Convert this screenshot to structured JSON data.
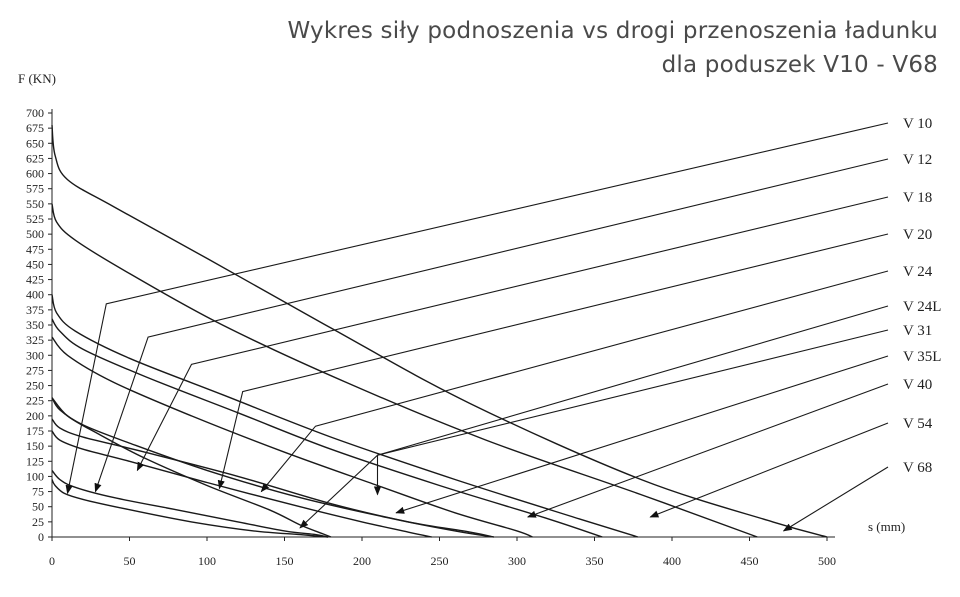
{
  "chart_data": {
    "type": "line",
    "title": "Wykres siły podnoszenia vs drogi przenoszenia ładunku",
    "subtitle": "dla poduszek V10 - V68",
    "ylabel": "F (KN)",
    "xlabel": "s (mm)",
    "xlim": [
      0,
      500
    ],
    "ylim": [
      0,
      700
    ],
    "x_ticks": [
      0,
      50,
      100,
      150,
      200,
      250,
      300,
      350,
      400,
      450,
      500
    ],
    "y_ticks": [
      0,
      25,
      50,
      75,
      100,
      125,
      150,
      175,
      200,
      225,
      250,
      275,
      300,
      325,
      350,
      375,
      400,
      425,
      450,
      475,
      500,
      525,
      550,
      575,
      600,
      625,
      650,
      675,
      700
    ],
    "grid": false,
    "series": [
      {
        "name": "V 10",
        "x": [
          0,
          2,
          8,
          20,
          50,
          90,
          130,
          160,
          178
        ],
        "y": [
          95,
          85,
          72,
          62,
          45,
          25,
          10,
          4,
          0
        ],
        "label_anchor": [
          35,
          385
        ],
        "arrow_tip": [
          10,
          72
        ]
      },
      {
        "name": "V 12",
        "x": [
          0,
          5,
          15,
          40,
          80,
          120,
          150,
          170,
          178
        ],
        "y": [
          110,
          95,
          82,
          65,
          45,
          25,
          10,
          4,
          0
        ],
        "label_anchor": [
          62,
          330
        ],
        "arrow_tip": [
          28,
          75
        ]
      },
      {
        "name": "V 18",
        "x": [
          0,
          10,
          30,
          60,
          100,
          140,
          160,
          175,
          180
        ],
        "y": [
          230,
          200,
          170,
          130,
          85,
          45,
          20,
          5,
          0
        ],
        "label_anchor": [
          90,
          285
        ],
        "arrow_tip": [
          55,
          110
        ]
      },
      {
        "name": "V 20",
        "x": [
          0,
          5,
          20,
          50,
          100,
          160,
          200,
          230,
          245
        ],
        "y": [
          175,
          160,
          145,
          125,
          90,
          50,
          25,
          8,
          0
        ],
        "label_anchor": [
          123,
          240
        ],
        "arrow_tip": [
          108,
          80
        ]
      },
      {
        "name": "V 24",
        "x": [
          0,
          5,
          20,
          50,
          100,
          160,
          220,
          260,
          285
        ],
        "y": [
          230,
          210,
          185,
          155,
          110,
          65,
          30,
          10,
          0
        ],
        "label_anchor": [
          170,
          183
        ],
        "arrow_tip": [
          135,
          75
        ]
      },
      {
        "name": "V 24L",
        "x": [
          0,
          5,
          20,
          60,
          120,
          180,
          230,
          270,
          285
        ],
        "y": [
          195,
          180,
          165,
          140,
          100,
          55,
          25,
          8,
          0
        ],
        "label_anchor": [
          210,
          135
        ],
        "arrow_tip": [
          160,
          15
        ]
      },
      {
        "name": "V 31",
        "x": [
          0,
          10,
          40,
          90,
          150,
          210,
          260,
          300,
          310
        ],
        "y": [
          330,
          300,
          255,
          200,
          140,
          85,
          40,
          10,
          0
        ],
        "label_anchor": [
          210,
          135
        ],
        "arrow_tip": [
          210,
          70
        ]
      },
      {
        "name": "V 35L",
        "x": [
          0,
          5,
          20,
          60,
          120,
          180,
          250,
          320,
          355
        ],
        "y": [
          360,
          340,
          310,
          265,
          205,
          145,
          85,
          30,
          0
        ],
        "label_anchor": null,
        "arrow_tip": [
          222,
          40
        ]
      },
      {
        "name": "V 40",
        "x": [
          0,
          3,
          15,
          50,
          110,
          180,
          260,
          340,
          378
        ],
        "y": [
          400,
          370,
          340,
          295,
          235,
          165,
          95,
          30,
          0
        ],
        "label_anchor": null,
        "arrow_tip": [
          307,
          33
        ]
      },
      {
        "name": "V 54",
        "x": [
          0,
          3,
          15,
          50,
          110,
          190,
          280,
          380,
          455
        ],
        "y": [
          550,
          520,
          490,
          435,
          350,
          255,
          160,
          70,
          0
        ],
        "label_anchor": null,
        "arrow_tip": [
          386,
          33
        ]
      },
      {
        "name": "V 68",
        "x": [
          0,
          2,
          10,
          40,
          100,
          180,
          270,
          380,
          465,
          500
        ],
        "y": [
          680,
          630,
          590,
          545,
          460,
          345,
          220,
          95,
          25,
          0
        ],
        "label_anchor": null,
        "arrow_tip": [
          472,
          10
        ]
      }
    ]
  }
}
